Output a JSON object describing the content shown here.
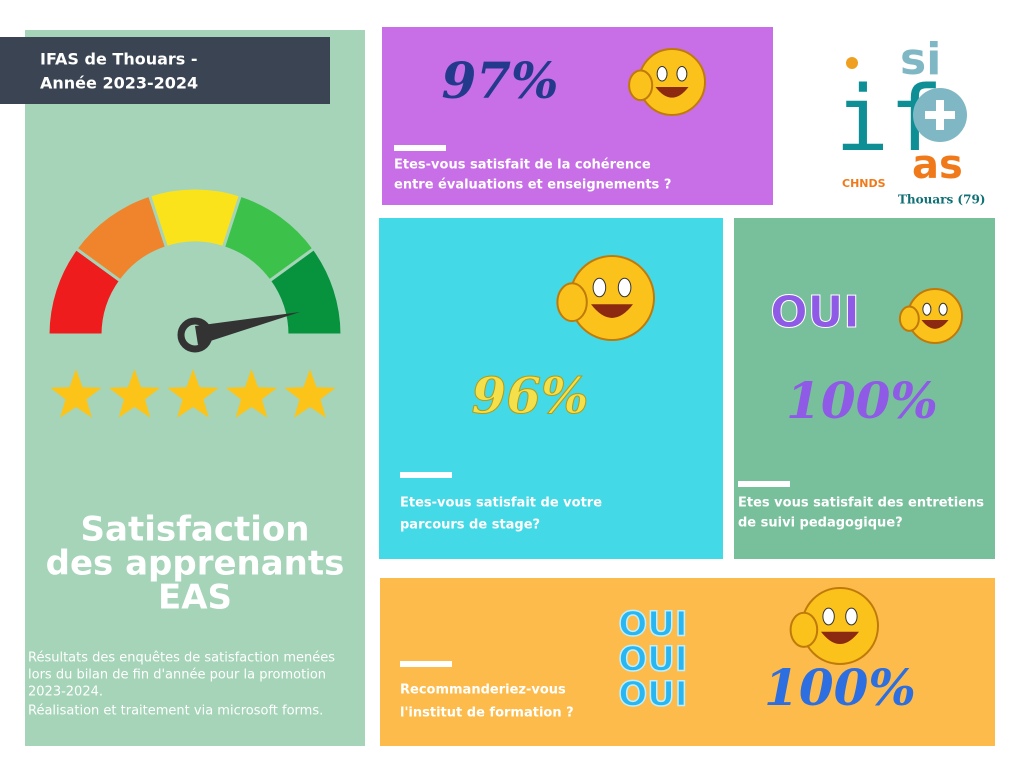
{
  "header": {
    "title_lines": [
      "IFAS de Thouars -",
      "Année 2023-2024"
    ]
  },
  "left_panel": {
    "title_lines": [
      "Satisfaction",
      "des apprenants",
      "EAS"
    ],
    "description_lines": [
      "Résultats des enquêtes de satisfaction menées",
      "lors du bilan de fin d'année pour la promotion",
      "2023-2024.",
      "Réalisation et traitement via microsoft forms."
    ]
  },
  "logo": {
    "top": "si",
    "left": "if",
    "bottom": "as",
    "left_caption": "CHNDS",
    "right_caption": "Thouars (79)"
  },
  "cards": [
    {
      "result": "97%",
      "question_lines": [
        "Etes-vous satisfait de la cohérence",
        "entre évaluations et enseignements ?"
      ]
    },
    {
      "result": "96%",
      "question_lines": [
        "Etes-vous satisfait de votre",
        "parcours de stage?"
      ]
    },
    {
      "answer": "OUI",
      "result": "100%",
      "question_lines": [
        "Etes vous satisfait des entretiens",
        "de suivi pedagogique?"
      ]
    },
    {
      "answer_lines": [
        "OUI",
        "OUI",
        "OUI"
      ],
      "result": "100%",
      "question_lines": [
        "Recommanderiez-vous",
        "l'institut de formation ?"
      ]
    }
  ]
}
